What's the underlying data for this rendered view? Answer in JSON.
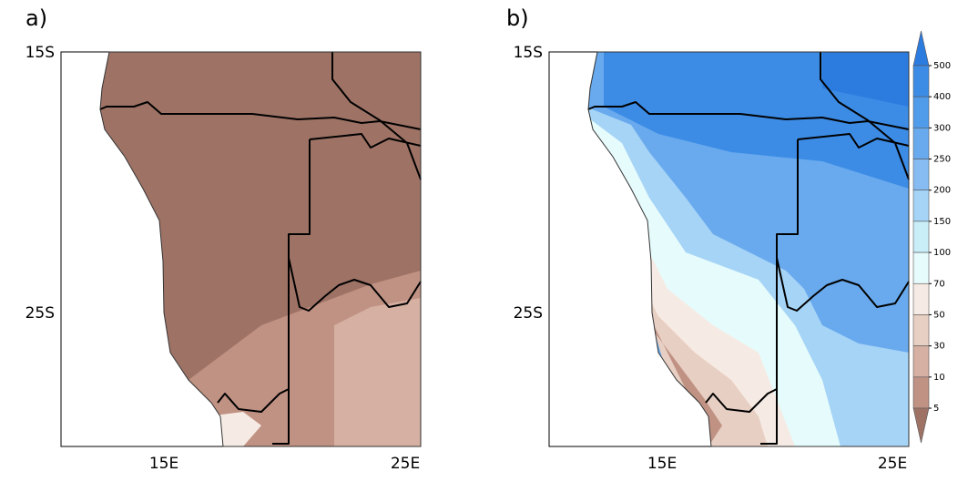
{
  "panels": [
    {
      "label": "a)"
    },
    {
      "label": "b)"
    }
  ],
  "axes": {
    "lat_labels": [
      "15S",
      "25S"
    ],
    "lon_labels": [
      "15E",
      "25E"
    ]
  },
  "colorbar": {
    "levels": [
      500,
      400,
      300,
      250,
      200,
      150,
      100,
      70,
      50,
      30,
      10,
      5
    ],
    "colors": [
      "#2c7ce0",
      "#3c8ce6",
      "#509bea",
      "#69aaee",
      "#86bcf2",
      "#a6d4f6",
      "#c9eef8",
      "#e6fbfc",
      "#f6ebe4",
      "#e8cfc3",
      "#d6b0a2",
      "#c09283",
      "#9e7366"
    ]
  }
}
